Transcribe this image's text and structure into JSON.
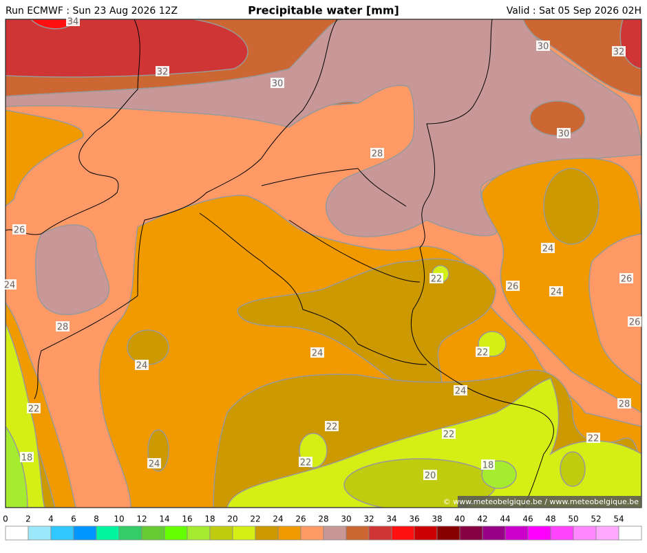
{
  "header": {
    "run": "Run ECMWF : Sun 23 Aug 2026 12Z",
    "title": "Precipitable water [mm]",
    "valid": "Valid : Sat 05 Sep 2026 02H"
  },
  "contour_labels": [
    34,
    32,
    30,
    30,
    32,
    30,
    28,
    26,
    24,
    28,
    24,
    24,
    22,
    26,
    24,
    24,
    26,
    26,
    22,
    24,
    22,
    22,
    22,
    22,
    28,
    18,
    24,
    22,
    20,
    18
  ],
  "copyright": "© www.meteobelgique.be / www.meteobelgique.be",
  "colorbar": {
    "ticks": [
      0,
      2,
      4,
      6,
      8,
      10,
      12,
      14,
      16,
      18,
      20,
      22,
      24,
      26,
      28,
      30,
      32,
      34,
      36,
      38,
      40,
      42,
      44,
      46,
      48,
      50,
      52,
      54
    ],
    "colors": [
      "#ffffff",
      "#9be8fa",
      "#2ec8ff",
      "#0096ff",
      "#00f5a0",
      "#33cc66",
      "#66cc33",
      "#66ff00",
      "#a6ec2e",
      "#bfcc10",
      "#d4ee16",
      "#cc9900",
      "#f09a00",
      "#ff9966",
      "#c89898",
      "#cc6633",
      "#d03535",
      "#ff1010",
      "#cc0000",
      "#880000",
      "#880044",
      "#990088",
      "#cc00cc",
      "#ff00ff",
      "#ff44ff",
      "#ff88ff",
      "#ffaaff",
      "#ffffff"
    ]
  }
}
